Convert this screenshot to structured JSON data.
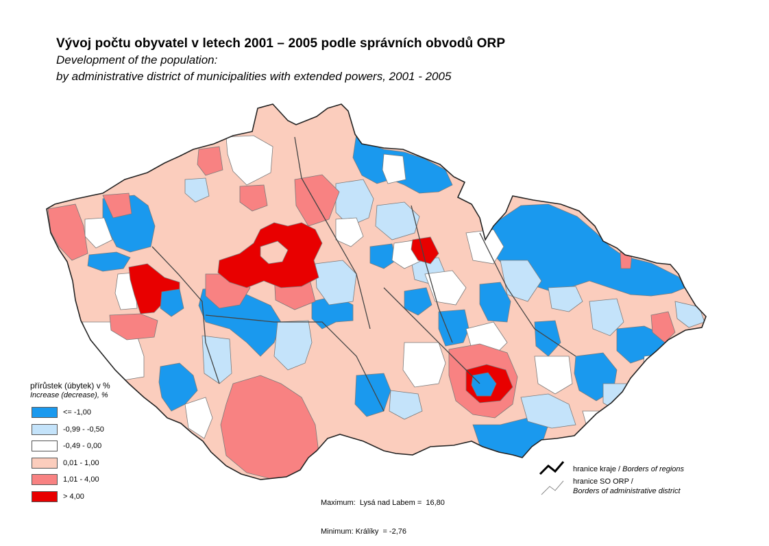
{
  "title": {
    "cz": "Vývoj počtu obyvatel v letech 2001 – 2005 podle správních obvodů ORP",
    "en_line1": "Development of the population:",
    "en_line2": "by administrative district of municipalities with extended powers, 2001 - 2005"
  },
  "legend": {
    "title": "přírůstek (úbytek) v %",
    "subtitle": "Increase (decrease), %",
    "classes": [
      {
        "label": "<= -1,00",
        "color": "#1a99ee"
      },
      {
        "label": "-0,99 - -0,50",
        "color": "#c4e3fa"
      },
      {
        "label": "-0,49 - 0,00",
        "color": "#ffffff"
      },
      {
        "label": "0,01 - 1,00",
        "color": "#fbcdbd"
      },
      {
        "label": "1,01 - 4,00",
        "color": "#f88282"
      },
      {
        "label": "> 4,00",
        "color": "#e80000"
      }
    ]
  },
  "stats": {
    "maximum": "Maximum:  Lysá nad Labem =  16,80",
    "minimum": "Minimum: Králíky  = -2,76"
  },
  "borders": {
    "region_cz": "hranice kraje /",
    "region_en": "Borders of regions",
    "district_cz": "hranice SO ORP /",
    "district_en": "Borders of administrative district"
  },
  "map_data": {
    "country": "Czech Republic",
    "unit": "administrative districts of municipalities with extended powers (SO ORP)",
    "classes_by_color": [
      "<= -1,00",
      "-0,99 - -0,50",
      "-0,49 - 0,00",
      "0,01 - 1,00",
      "1,01 - 4,00",
      "> 4,00"
    ]
  }
}
